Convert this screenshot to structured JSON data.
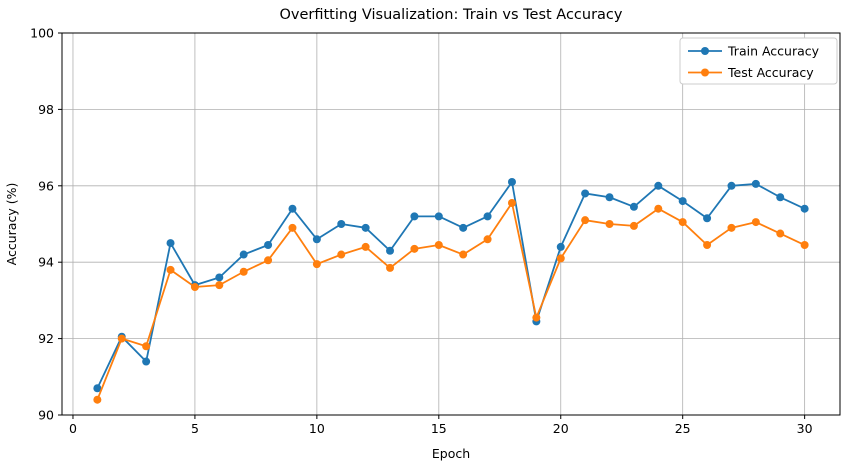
{
  "chart_data": {
    "type": "line",
    "title": "Overfitting Visualization: Train vs Test Accuracy",
    "xlabel": "Epoch",
    "ylabel": "Accuracy (%)",
    "x": [
      1,
      2,
      3,
      4,
      5,
      6,
      7,
      8,
      9,
      10,
      11,
      12,
      13,
      14,
      15,
      16,
      17,
      18,
      19,
      20,
      21,
      22,
      23,
      24,
      25,
      26,
      27,
      28,
      29,
      30
    ],
    "series": [
      {
        "name": "Train Accuracy",
        "color": "#1f77b4",
        "values": [
          90.7,
          92.05,
          91.4,
          94.5,
          93.4,
          93.6,
          94.2,
          94.45,
          95.4,
          94.6,
          95.0,
          94.9,
          94.3,
          95.2,
          95.2,
          94.9,
          95.2,
          96.1,
          92.45,
          94.4,
          95.8,
          95.7,
          95.45,
          96.0,
          95.6,
          95.15,
          96.0,
          96.05,
          95.7,
          95.4
        ]
      },
      {
        "name": "Test Accuracy",
        "color": "#ff7f0e",
        "values": [
          90.4,
          92.0,
          91.8,
          93.8,
          93.35,
          93.4,
          93.75,
          94.05,
          94.9,
          93.95,
          94.2,
          94.4,
          93.85,
          94.35,
          94.45,
          94.2,
          94.6,
          95.55,
          92.55,
          94.1,
          95.1,
          95.0,
          94.95,
          95.4,
          95.05,
          94.45,
          94.9,
          95.05,
          94.75,
          94.45
        ]
      }
    ],
    "xlim": [
      -0.45,
      31.45
    ],
    "ylim": [
      90,
      100
    ],
    "xticks": [
      0,
      5,
      10,
      15,
      20,
      25,
      30
    ],
    "yticks": [
      90,
      92,
      94,
      96,
      98,
      100
    ],
    "grid": true,
    "legend_position": "upper right",
    "grid_color": "#b0b0b0",
    "axis_color": "#000000",
    "marker": "o",
    "background": "#ffffff"
  }
}
